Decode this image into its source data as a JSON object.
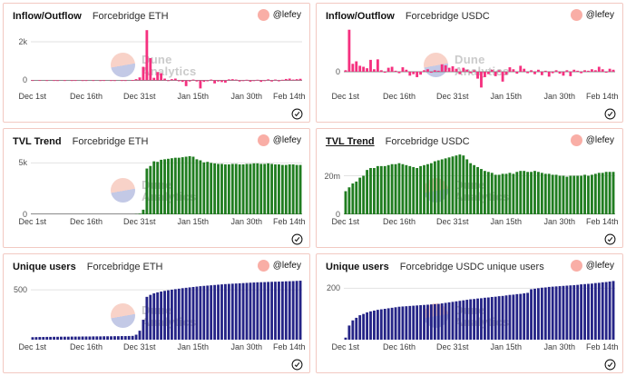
{
  "watermark": {
    "line1": "Dune",
    "line2": "Analytics"
  },
  "colors": {
    "pink_bar": "#f5307f",
    "green_bar": "#207d20",
    "navy_bar": "#252487",
    "panel_border": "#f2c9c2",
    "avatar": "#f9aea6",
    "axis_line": "#8a8a8a",
    "gridline": "#e2e2e2"
  },
  "chart_data": [
    {
      "type": "bar",
      "title": "Inflow/Outflow",
      "subtitle": "Forcebridge ETH",
      "author": "@lefey",
      "color": "#f5307f",
      "ymin": -450,
      "ymax": 2750,
      "yticks": [
        {
          "label": "2k",
          "value": 2000,
          "axis": false
        },
        {
          "label": "0",
          "value": 0,
          "axis": true
        }
      ],
      "xticks": [
        "Dec 1st",
        "Dec 16th",
        "Dec 31st",
        "Jan 15th",
        "Jan 30th",
        "Feb 14th"
      ],
      "values": [
        5,
        0,
        8,
        0,
        3,
        0,
        5,
        2,
        0,
        4,
        0,
        3,
        6,
        0,
        2,
        3,
        0,
        4,
        0,
        2,
        5,
        0,
        3,
        2,
        0,
        4,
        3,
        0,
        10,
        60,
        150,
        700,
        2600,
        1150,
        130,
        430,
        370,
        90,
        -40,
        60,
        90,
        -50,
        -80,
        -300,
        -60,
        40,
        -60,
        -420,
        -80,
        -50,
        40,
        -160,
        -60,
        -90,
        -120,
        50,
        60,
        40,
        -60,
        -40,
        30,
        -70,
        -40,
        30,
        -80,
        -40,
        50,
        -60,
        40,
        -50,
        30,
        70,
        90,
        40,
        60,
        80
      ]
    },
    {
      "type": "bar",
      "title": "Inflow/Outflow",
      "subtitle": "Forcebridge USDC",
      "author": "@lefey",
      "color": "#f5307f",
      "ymin": -3.5,
      "ymax": 9,
      "yticks": [
        {
          "label": "0",
          "value": 0,
          "axis": true
        }
      ],
      "xticks": [
        "Dec 1st",
        "Dec 16th",
        "Dec 31st",
        "Jan 15th",
        "Jan 30th",
        "Feb 14th"
      ],
      "values": [
        0.3,
        8.5,
        1.6,
        2.1,
        1.2,
        1.0,
        0.7,
        2.4,
        0.5,
        2.5,
        0.3,
        -0.2,
        0.8,
        1.0,
        0.2,
        -0.3,
        0.9,
        0.4,
        -0.8,
        -0.5,
        -1.1,
        -0.6,
        0.3,
        0.5,
        -0.2,
        0.3,
        0.2,
        1.5,
        1.3,
        0.8,
        1.1,
        0.6,
        -0.5,
        0.8,
        0.4,
        -0.3,
        0.3,
        -1.4,
        -3.2,
        -1.1,
        -0.5,
        0.4,
        -0.9,
        0.3,
        -2.0,
        -0.6,
        0.9,
        0.5,
        -0.4,
        1.2,
        0.6,
        -0.3,
        0.3,
        -0.5,
        0.4,
        -0.7,
        0.2,
        -1.0,
        -0.3,
        0.3,
        -0.4,
        -0.8,
        0.3,
        -0.9,
        0.4,
        0.2,
        -0.3,
        0.3,
        0.2,
        0.5,
        0.3,
        1.0,
        0.5,
        -0.2,
        0.6,
        0.4
      ]
    },
    {
      "type": "bar",
      "title": "TVL Trend",
      "subtitle": "Forcebridge ETH",
      "author": "@lefey",
      "color": "#207d20",
      "ymin": 0,
      "ymax": 6000,
      "yticks": [
        {
          "label": "5k",
          "value": 5000,
          "axis": false
        },
        {
          "label": "0",
          "value": 0,
          "axis": true
        }
      ],
      "xticks": [
        "Dec 1st",
        "Dec 16th",
        "Dec 31st",
        "Jan 15th",
        "Jan 30th",
        "Feb 14th"
      ],
      "values": [
        0,
        0,
        0,
        0,
        0,
        0,
        0,
        0,
        0,
        0,
        0,
        0,
        0,
        0,
        0,
        0,
        0,
        0,
        0,
        0,
        0,
        0,
        0,
        0,
        0,
        0,
        0,
        0,
        0,
        20,
        60,
        450,
        4450,
        4700,
        5150,
        5100,
        5300,
        5350,
        5400,
        5450,
        5500,
        5500,
        5550,
        5600,
        5650,
        5600,
        5350,
        5250,
        5050,
        5100,
        5000,
        4950,
        4900,
        4900,
        4850,
        4850,
        4900,
        4900,
        4850,
        4850,
        4900,
        4900,
        4950,
        4950,
        4900,
        4900,
        4950,
        4900,
        4850,
        4850,
        4800,
        4800,
        4850,
        4850,
        4800,
        4800
      ]
    },
    {
      "type": "bar",
      "title": "TVL Trend",
      "title_underline": true,
      "subtitle": "Forcebridge USDC",
      "author": "@lefey",
      "color": "#207d20",
      "ymin": 0,
      "ymax": 32,
      "yticks": [
        {
          "label": "20m",
          "value": 20,
          "axis": false
        },
        {
          "label": "0",
          "value": 0,
          "axis": true
        }
      ],
      "xticks": [
        "Dec 1st",
        "Dec 16th",
        "Dec 31st",
        "Jan 15th",
        "Jan 30th",
        "Feb 14th"
      ],
      "values": [
        12,
        14,
        16,
        17,
        19,
        20,
        23,
        24,
        24,
        25,
        25,
        25,
        25.5,
        26,
        26,
        26.5,
        26,
        25.5,
        25,
        24.5,
        24,
        25,
        25.5,
        26,
        26.5,
        27.5,
        28,
        28.5,
        29,
        29.5,
        30,
        30.5,
        31,
        30.5,
        28.5,
        26.5,
        25.5,
        24.5,
        23.5,
        22.5,
        22,
        21.5,
        20.5,
        20.5,
        21,
        21,
        21.5,
        21,
        22,
        22.5,
        22.5,
        22,
        22,
        22.5,
        22,
        21.5,
        21,
        21,
        20.5,
        20.5,
        20,
        20,
        19.5,
        20,
        20,
        20,
        20,
        20.5,
        20,
        20.5,
        21,
        21.5,
        21.5,
        22,
        22,
        22
      ]
    },
    {
      "type": "bar",
      "title": "Unique users",
      "subtitle": "Forcebridge ETH",
      "author": "@lefey",
      "color": "#252487",
      "ymin": 0,
      "ymax": 620,
      "yticks": [
        {
          "label": "500",
          "value": 500,
          "axis": false
        }
      ],
      "xticks": [
        "Dec 1st",
        "Dec 16th",
        "Dec 31st",
        "Jan 15th",
        "Jan 30th",
        "Feb 14th"
      ],
      "values": [
        25,
        26,
        27,
        27,
        28,
        28,
        29,
        29,
        30,
        30,
        30,
        31,
        31,
        31,
        32,
        32,
        32,
        33,
        33,
        33,
        34,
        34,
        34,
        35,
        35,
        36,
        36,
        37,
        38,
        50,
        90,
        200,
        430,
        450,
        465,
        475,
        483,
        490,
        496,
        502,
        507,
        512,
        517,
        521,
        525,
        529,
        533,
        537,
        540,
        543,
        546,
        549,
        552,
        555,
        558,
        560,
        562,
        564,
        566,
        568,
        570,
        572,
        574,
        576,
        577,
        578,
        580,
        581,
        582,
        583,
        584,
        586,
        587,
        588,
        590,
        592
      ]
    },
    {
      "type": "bar",
      "title": "Unique users",
      "subtitle": "Forcebridge USDC unique users",
      "author": "@lefey",
      "color": "#252487",
      "ymin": 0,
      "ymax": 240,
      "yticks": [
        {
          "label": "200",
          "value": 200,
          "axis": false
        }
      ],
      "xticks": [
        "Dec 1st",
        "Dec 16th",
        "Dec 31st",
        "Jan 15th",
        "Jan 30th",
        "Feb 14th"
      ],
      "values": [
        8,
        55,
        75,
        85,
        95,
        100,
        106,
        110,
        113,
        116,
        118,
        120,
        122,
        124,
        126,
        128,
        129,
        130,
        131,
        132,
        133,
        134,
        135,
        136,
        137,
        138,
        139,
        141,
        143,
        145,
        147,
        149,
        151,
        153,
        155,
        157,
        158,
        160,
        161,
        163,
        164,
        166,
        167,
        169,
        170,
        172,
        174,
        175,
        177,
        178,
        180,
        182,
        196,
        198,
        200,
        202,
        203,
        205,
        206,
        207,
        208,
        209,
        210,
        211,
        212,
        213,
        215,
        216,
        217,
        218,
        220,
        221,
        223,
        224,
        226,
        228
      ]
    }
  ]
}
